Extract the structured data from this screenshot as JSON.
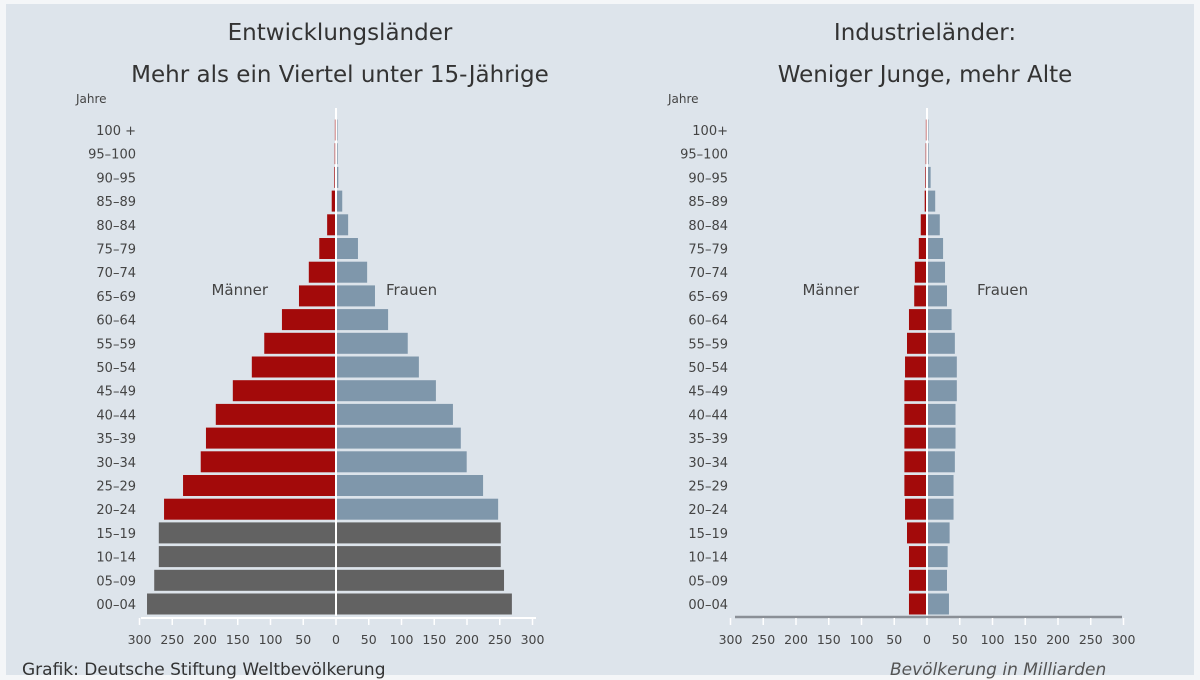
{
  "colors": {
    "background": "#dde4eb",
    "male": "#a30a0a",
    "female": "#7f97ab",
    "youth": "#626262",
    "text": "#444444"
  },
  "source": "Grafik: Deutsche Stiftung Weltbevölkerung",
  "unit_label": "Bevölkerung in Milliarden",
  "chart_data": [
    {
      "type": "bar",
      "orientation": "horizontal-pyramid",
      "title": "Entwicklungsländer",
      "subtitle": "Mehr als ein Viertel unter 15-Jährige",
      "ylabel": "Jahre",
      "male_label": "Männer",
      "female_label": "Frauen",
      "xlim": [
        -300,
        300
      ],
      "xticks": [
        "300",
        "250",
        "200",
        "150",
        "100",
        "50",
        "0",
        "50",
        "100",
        "150",
        "200",
        "250",
        "300"
      ],
      "categories": [
        "00–04",
        "05–09",
        "10–14",
        "15–19",
        "20–24",
        "25–29",
        "30–34",
        "35–39",
        "40–44",
        "45–49",
        "50–54",
        "55–59",
        "60–64",
        "65–69",
        "70–74",
        "75–79",
        "80–84",
        "85–89",
        "90–95",
        "95–100",
        "100 +"
      ],
      "series": [
        {
          "name": "Männer",
          "values": [
            287,
            276,
            269,
            269,
            261,
            232,
            205,
            197,
            182,
            156,
            127,
            108,
            81,
            55,
            40,
            24,
            12,
            5,
            1,
            0.5,
            0.2
          ]
        },
        {
          "name": "Frauen",
          "values": [
            267,
            255,
            250,
            250,
            246,
            223,
            198,
            189,
            177,
            151,
            125,
            108,
            78,
            58,
            46,
            32,
            17,
            8,
            2,
            1,
            0.3
          ]
        }
      ],
      "highlight_youth_categories": [
        "00–04",
        "05–09",
        "10–14",
        "15–19"
      ]
    },
    {
      "type": "bar",
      "orientation": "horizontal-pyramid",
      "title": "Industrieländer:",
      "subtitle": "Weniger Junge, mehr Alte",
      "ylabel": "Jahre",
      "male_label": "Männer",
      "female_label": "Frauen",
      "xlim": [
        -300,
        300
      ],
      "xticks": [
        "300",
        "250",
        "200",
        "150",
        "100",
        "50",
        "0",
        "50",
        "100",
        "150",
        "200",
        "250",
        "300"
      ],
      "categories": [
        "00–04",
        "05–09",
        "10–14",
        "15–19",
        "20–24",
        "25–29",
        "30–34",
        "35–39",
        "40–44",
        "45–49",
        "50–54",
        "55–59",
        "60–64",
        "65–69",
        "70–74",
        "75–79",
        "80–84",
        "85–89",
        "90–95",
        "95–100",
        "100+"
      ],
      "series": [
        {
          "name": "Männer",
          "values": [
            26,
            26,
            26,
            29,
            32,
            33,
            33,
            33,
            33,
            33,
            32,
            29,
            26,
            18,
            17,
            11,
            8,
            2,
            1,
            0.5,
            0.2
          ]
        },
        {
          "name": "Frauen",
          "values": [
            32,
            29,
            30,
            33,
            39,
            39,
            41,
            42,
            42,
            44,
            44,
            41,
            36,
            29,
            26,
            23,
            18,
            11,
            4,
            1,
            0.3
          ]
        }
      ]
    }
  ]
}
